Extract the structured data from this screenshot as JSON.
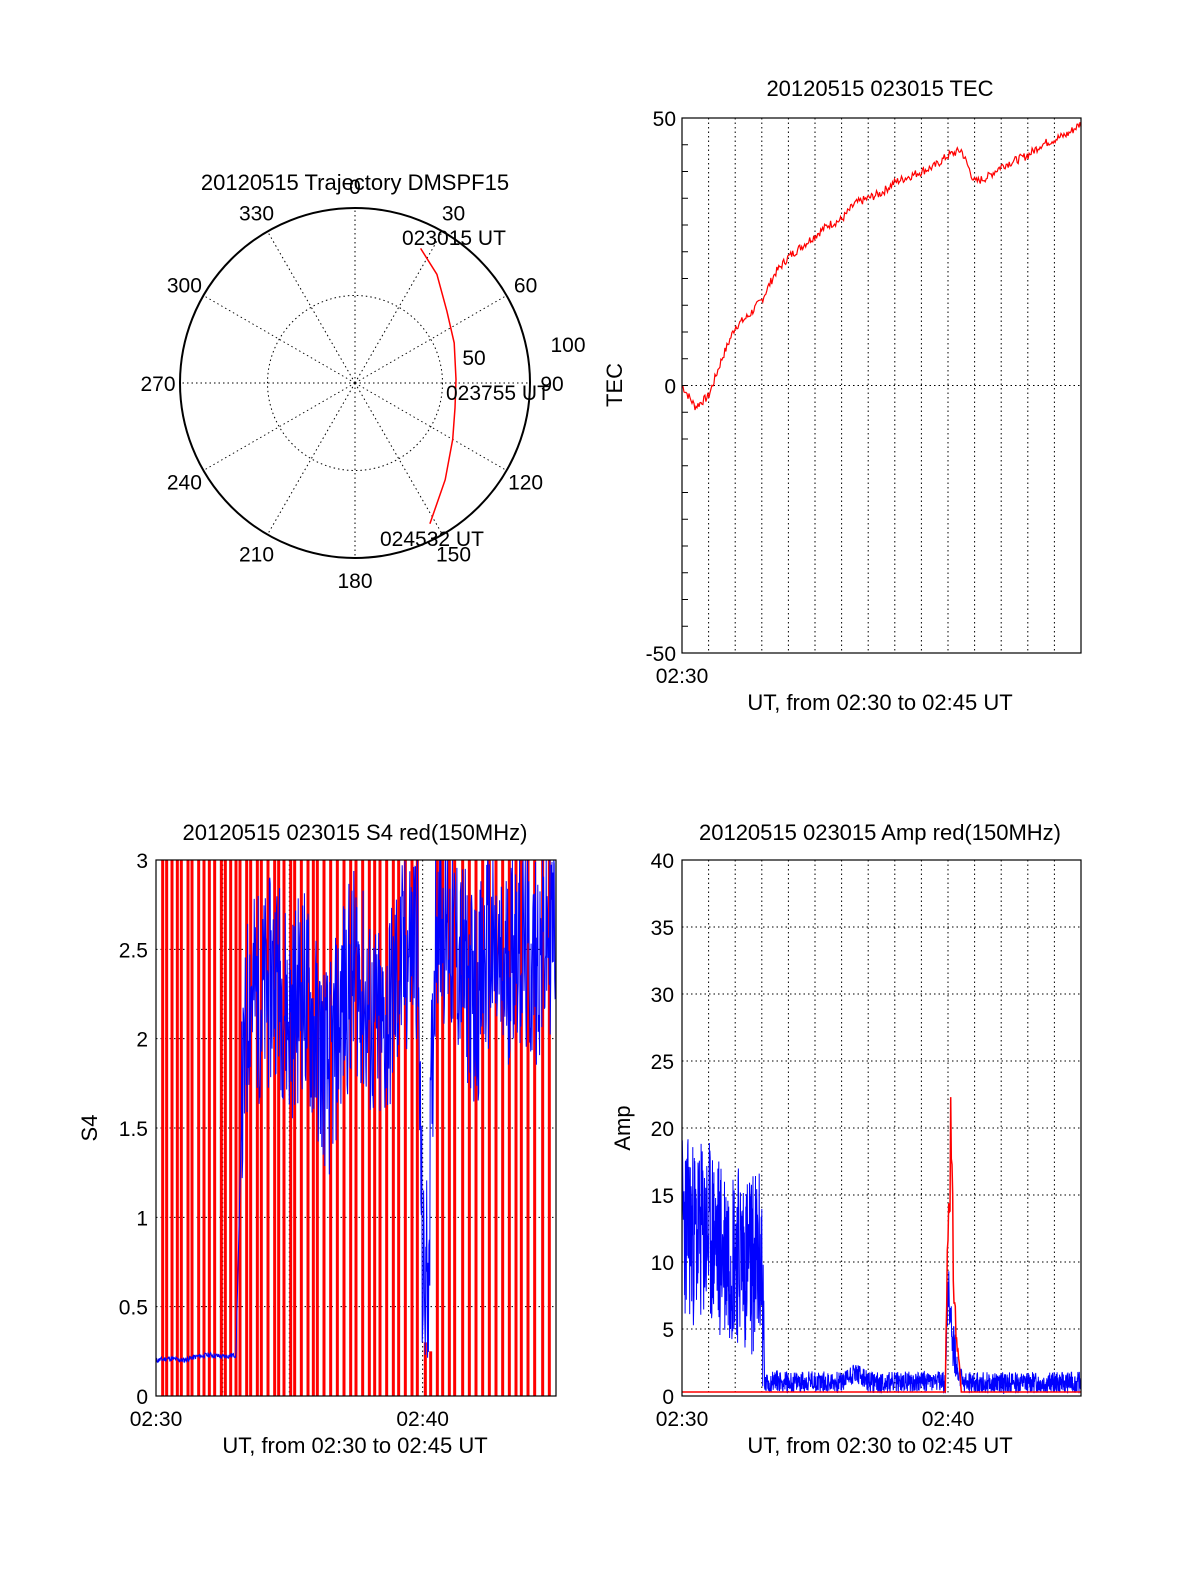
{
  "chart_data": [
    {
      "type": "polar",
      "title": "20120515 Trajectory DMSPF15",
      "angle_labels": [
        "0",
        "30",
        "60",
        "90",
        "120",
        "150",
        "180",
        "210",
        "240",
        "270",
        "300",
        "330"
      ],
      "radius_labels": [
        "50",
        "100"
      ],
      "grid": true,
      "series": [
        {
          "color": "#ff0000",
          "points": [
            {
              "azimuth": 26,
              "zenith": 77
            },
            {
              "azimuth": 37,
              "zenith": 70
            },
            {
              "azimuth": 52,
              "zenith": 60
            },
            {
              "azimuth": 68,
              "zenith": 55
            },
            {
              "azimuth": 88,
              "zenith": 52
            },
            {
              "azimuth": 104,
              "zenith": 53
            },
            {
              "azimuth": 120,
              "zenith": 58
            },
            {
              "azimuth": 137,
              "zenith": 68
            },
            {
              "azimuth": 152,
              "zenith": 82
            }
          ]
        }
      ],
      "annotations": [
        "023015 UT",
        "023755 UT",
        "024532 UT"
      ]
    },
    {
      "type": "line",
      "title": "20120515 023015 TEC",
      "xlabel": "UT, from 02:30 to 02:45 UT",
      "ylabel": "TEC",
      "x_unit": "minutes",
      "xlim": [
        0,
        15
      ],
      "ylim": [
        -50,
        50
      ],
      "x_tick_labels": [
        "02:30"
      ],
      "y_ticks": [
        "50",
        "0",
        "-50"
      ],
      "grid": "vertical",
      "series": [
        {
          "color": "#ff0000",
          "x": [
            0,
            0.5,
            1.0,
            1.5,
            2.0,
            2.5,
            3.0,
            3.5,
            4.0,
            4.5,
            5.0,
            5.5,
            6.0,
            6.5,
            7.0,
            7.5,
            8.0,
            8.5,
            9.0,
            9.5,
            10.0,
            10.5,
            11.0,
            11.5,
            12.0,
            12.5,
            13.0,
            13.5,
            14.0,
            14.5,
            15.0
          ],
          "y": [
            0,
            -4,
            -2,
            5,
            11,
            13,
            16,
            21,
            24,
            26,
            28,
            30,
            31,
            34,
            35,
            36,
            38,
            39,
            40,
            41,
            43,
            44,
            38,
            39,
            41,
            42,
            43,
            45,
            46,
            47,
            49
          ]
        }
      ]
    },
    {
      "type": "line",
      "title": "20120515 023015 S4 red(150MHz)",
      "xlabel": "UT, from 02:30 to 02:45 UT",
      "ylabel": "S4",
      "x_unit": "minutes",
      "xlim": [
        0,
        15
      ],
      "ylim": [
        0,
        3
      ],
      "x_tick_labels": [
        "02:30",
        "02:40"
      ],
      "y_ticks": [
        "3",
        "2.5",
        "2",
        "1.5",
        "1",
        "0.5",
        "0"
      ],
      "grid": true,
      "series": [
        {
          "color": "#ff0000",
          "style": "spikes",
          "x": [
            0.25,
            0.4,
            0.6,
            0.8,
            0.95,
            1.2,
            1.35,
            1.6,
            1.8,
            2.0,
            2.2,
            2.45,
            2.6,
            2.8,
            3.0,
            3.15,
            3.4,
            3.55,
            3.8,
            3.95,
            4.2,
            4.45,
            4.6,
            4.8,
            5.05,
            5.2,
            5.45,
            5.7,
            5.9,
            6.05,
            6.3,
            6.55,
            6.8,
            7.05,
            7.3,
            7.5,
            7.75,
            8.0,
            8.2,
            8.4,
            8.65,
            8.9,
            9.1,
            9.35,
            9.6,
            9.8,
            10.1,
            10.3,
            10.55,
            10.75,
            11.0,
            11.2,
            11.5,
            11.75,
            12.0,
            12.25,
            12.5,
            12.75,
            13.0,
            13.25,
            13.5,
            13.7,
            13.95,
            14.2,
            14.5,
            14.75
          ],
          "y": [
            3,
            3,
            3,
            3,
            3,
            3,
            3,
            3,
            3,
            3,
            3,
            3,
            3,
            3,
            3,
            3,
            3,
            3,
            3,
            3,
            3,
            3,
            3,
            3,
            3,
            3,
            3,
            3,
            3,
            3,
            3,
            3,
            3,
            3,
            3,
            3,
            3,
            3,
            3,
            3,
            3,
            3,
            3,
            3,
            3,
            3,
            0.3,
            0.25,
            3,
            3,
            3,
            3,
            3,
            3,
            3,
            3,
            3,
            3,
            3,
            3,
            3,
            3,
            3,
            3,
            3,
            3
          ]
        },
        {
          "color": "#0000ff",
          "x": [
            0,
            0.5,
            1.0,
            1.5,
            2.0,
            2.5,
            3.0,
            3.2,
            3.5,
            4.0,
            4.5,
            5.0,
            5.5,
            6.0,
            6.5,
            7.0,
            7.5,
            8.0,
            8.5,
            9.0,
            9.5,
            9.8,
            10.0,
            10.2,
            10.5,
            11.0,
            11.5,
            12.0,
            12.5,
            13.0,
            13.5,
            14.0,
            14.5,
            15.0
          ],
          "y": [
            0.2,
            0.21,
            0.2,
            0.22,
            0.23,
            0.22,
            0.23,
            1.5,
            2.3,
            2.2,
            2.4,
            2.1,
            2.3,
            2.0,
            1.8,
            2.2,
            2.4,
            2.1,
            2.0,
            2.3,
            2.5,
            2.6,
            0.6,
            0.7,
            2.8,
            2.6,
            2.4,
            2.2,
            2.5,
            2.3,
            2.6,
            2.4,
            2.5,
            2.7
          ]
        }
      ]
    },
    {
      "type": "line",
      "title": "20120515 023015 Amp red(150MHz)",
      "xlabel": "UT, from 02:30 to 02:45 UT",
      "ylabel": "Amp",
      "x_unit": "minutes",
      "xlim": [
        0,
        15
      ],
      "ylim": [
        0,
        40
      ],
      "x_tick_labels": [
        "02:30",
        "02:40"
      ],
      "y_ticks": [
        "40",
        "35",
        "30",
        "25",
        "20",
        "15",
        "10",
        "5",
        "0"
      ],
      "grid": true,
      "series": [
        {
          "color": "#0000ff",
          "x": [
            0,
            0.5,
            1.0,
            1.5,
            2.0,
            2.5,
            3.0,
            3.1,
            3.5,
            4.0,
            5.0,
            6.0,
            6.5,
            7.0,
            8.0,
            9.0,
            9.9,
            10.0,
            10.2,
            10.4,
            10.6,
            11.0,
            12.0,
            13.0,
            14.0,
            15.0
          ],
          "y": [
            13,
            12,
            12,
            11,
            11,
            10,
            10,
            0.8,
            1.2,
            1.0,
            1.1,
            1.0,
            1.8,
            1.0,
            1.0,
            1.1,
            1.0,
            8.0,
            4.0,
            1.5,
            1.0,
            1.0,
            1.0,
            1.0,
            1.0,
            1.0
          ]
        },
        {
          "color": "#ff0000",
          "x": [
            0,
            1.0,
            2.0,
            3.0,
            3.1,
            9.9,
            10.0,
            10.1,
            10.2,
            10.3,
            10.5,
            15.0
          ],
          "y": [
            0.3,
            0.3,
            0.3,
            0.3,
            0.3,
            0.3,
            17,
            24.5,
            12,
            6,
            0.3,
            0.3
          ]
        }
      ]
    }
  ]
}
